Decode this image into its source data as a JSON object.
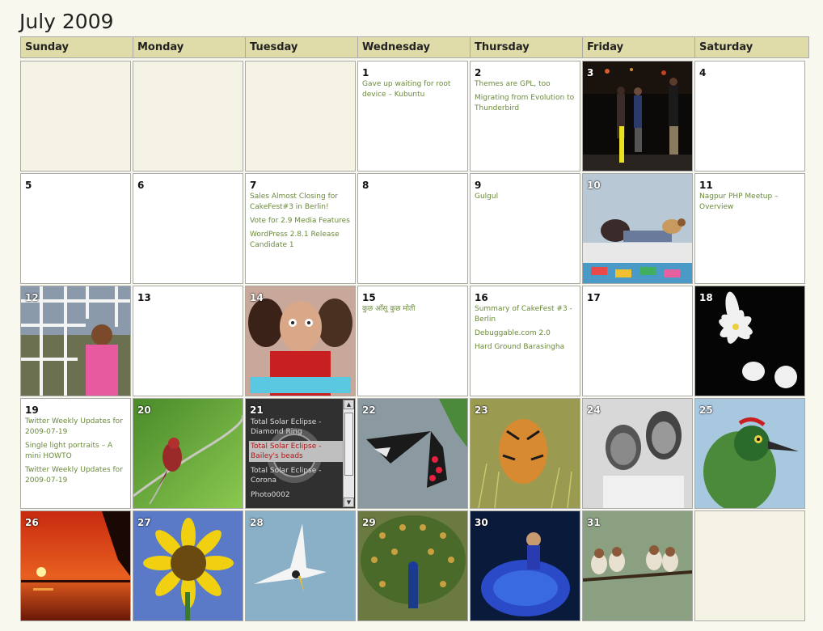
{
  "calendar": {
    "title": "July 2009",
    "weekdays": [
      "Sunday",
      "Monday",
      "Tuesday",
      "Wednesday",
      "Thursday",
      "Friday",
      "Saturday"
    ],
    "colors": {
      "header_bg": "#e0dcaa",
      "link": "#6a8a3a",
      "empty_bg": "#f5f3e4"
    }
  },
  "days": {
    "d1": {
      "num": "1",
      "posts": [
        "Gave up waiting for root device – Kubuntu"
      ]
    },
    "d2": {
      "num": "2",
      "posts": [
        "Themes are GPL, too",
        "Migrating from Evolution to Thunderbird"
      ]
    },
    "d3": {
      "num": "3",
      "photo": "stage-performance-photo"
    },
    "d4": {
      "num": "4"
    },
    "d5": {
      "num": "5"
    },
    "d6": {
      "num": "6"
    },
    "d7": {
      "num": "7",
      "posts": [
        "Sales Almost Closing for CakeFest#3 in Berlin!",
        "Vote for 2.9 Media Features",
        "WordPress 2.8.1 Release Candidate 1"
      ]
    },
    "d8": {
      "num": "8"
    },
    "d9": {
      "num": "9",
      "posts": [
        "Gulgul"
      ]
    },
    "d10": {
      "num": "10",
      "photo": "girl-with-dog-photo"
    },
    "d11": {
      "num": "11",
      "posts": [
        "Nagpur PHP Meetup – Overview"
      ]
    },
    "d12": {
      "num": "12",
      "photo": "girl-behind-grill-photo"
    },
    "d13": {
      "num": "13"
    },
    "d14": {
      "num": "14",
      "photo": "straight-movie-poster"
    },
    "d15": {
      "num": "15",
      "posts": [
        "कुछ आँसू कुछ मोती"
      ]
    },
    "d16": {
      "num": "16",
      "posts": [
        "Summary of CakeFest #3 - Berlin",
        "Debuggable.com 2.0",
        "Hard Ground Barasingha"
      ]
    },
    "d17": {
      "num": "17"
    },
    "d18": {
      "num": "18",
      "photo": "white-flowers-photo"
    },
    "d19": {
      "num": "19",
      "posts": [
        "Twitter Weekly Updates for 2009-07-19",
        "Single light portraits – A mini HOWTO",
        "Twitter Weekly Updates for 2009-07-19"
      ]
    },
    "d20": {
      "num": "20",
      "photo": "red-bird-photo"
    },
    "d21": {
      "num": "21",
      "slides": [
        "Total Solar Eclipse - Diamond Ring",
        "Total Solar Eclipse - Bailey's beads",
        "Total Solar Eclipse - Corona",
        "Photo0002"
      ]
    },
    "d22": {
      "num": "22",
      "photo": "butterfly-photo"
    },
    "d23": {
      "num": "23",
      "photo": "tiger-photo"
    },
    "d24": {
      "num": "24",
      "photo": "bw-portrait-photo"
    },
    "d25": {
      "num": "25",
      "photo": "barbet-bird-photo"
    },
    "d26": {
      "num": "26",
      "photo": "sunset-photo"
    },
    "d27": {
      "num": "27",
      "photo": "sunflower-photo"
    },
    "d28": {
      "num": "28",
      "photo": "tern-bird-photo"
    },
    "d29": {
      "num": "29",
      "photo": "peacock-photo"
    },
    "d30": {
      "num": "30",
      "photo": "dancer-photo"
    },
    "d31": {
      "num": "31",
      "photo": "birds-on-branch-photo"
    }
  }
}
